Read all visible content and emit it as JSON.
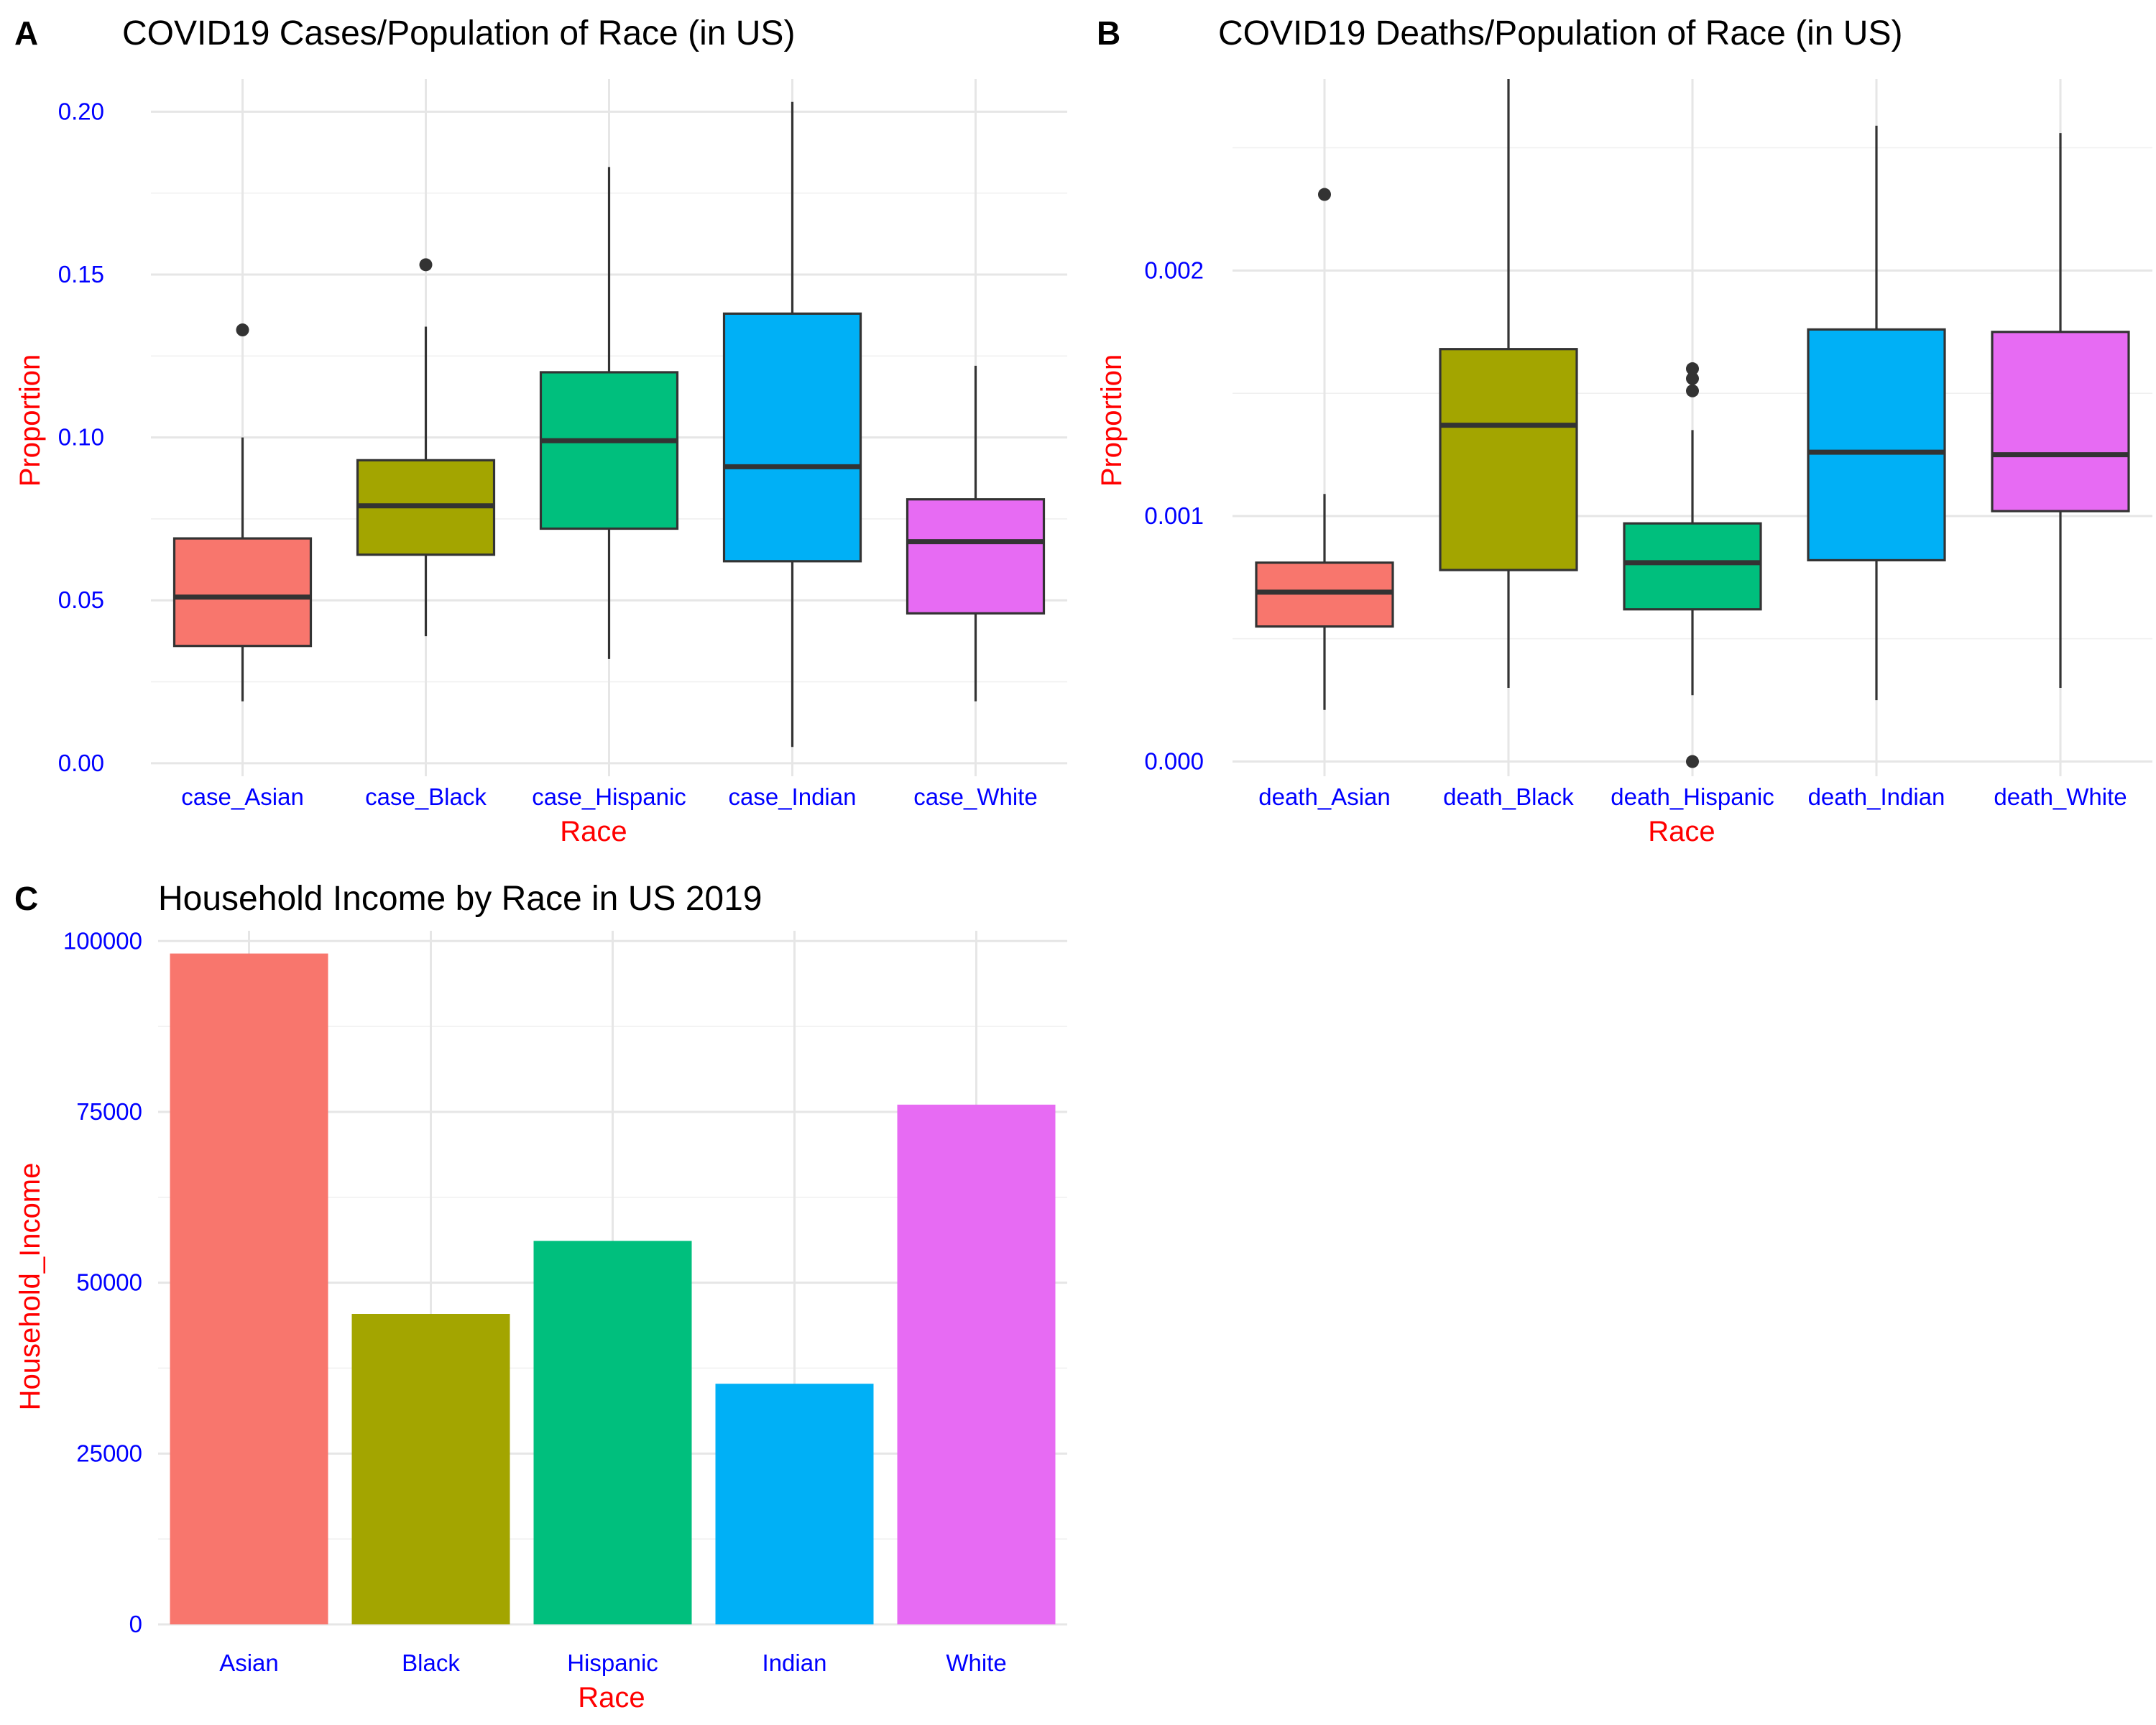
{
  "chart_data": [
    {
      "panel": "A",
      "type": "box",
      "title": "COVID19 Cases/Population of Race (in US)",
      "xlabel": "Race",
      "ylabel": "Proportion",
      "ylim": [
        -0.004,
        0.21
      ],
      "yticks": [
        0.0,
        0.05,
        0.1,
        0.15,
        0.2
      ],
      "ytick_labels": [
        "0.00",
        "0.05",
        "0.10",
        "0.15",
        "0.20"
      ],
      "categories": [
        "case_Asian",
        "case_Black",
        "case_Hispanic",
        "case_Indian",
        "case_White"
      ],
      "colors": [
        "#F8766D",
        "#A3A500",
        "#00BF7D",
        "#00B0F6",
        "#E76BF3"
      ],
      "boxes": [
        {
          "whisker_low": 0.019,
          "q1": 0.036,
          "median": 0.051,
          "q3": 0.069,
          "whisker_high": 0.1,
          "outliers": [
            0.133
          ]
        },
        {
          "whisker_low": 0.039,
          "q1": 0.064,
          "median": 0.079,
          "q3": 0.093,
          "whisker_high": 0.134,
          "outliers": [
            0.153
          ]
        },
        {
          "whisker_low": 0.032,
          "q1": 0.072,
          "median": 0.099,
          "q3": 0.12,
          "whisker_high": 0.183,
          "outliers": []
        },
        {
          "whisker_low": 0.005,
          "q1": 0.062,
          "median": 0.091,
          "q3": 0.138,
          "whisker_high": 0.203,
          "outliers": []
        },
        {
          "whisker_low": 0.019,
          "q1": 0.046,
          "median": 0.068,
          "q3": 0.081,
          "whisker_high": 0.122,
          "outliers": []
        }
      ]
    },
    {
      "panel": "B",
      "type": "box",
      "title": "COVID19 Deaths/Population of Race (in US)",
      "xlabel": "Race",
      "ylabel": "Proportion",
      "ylim": [
        -6e-05,
        0.00278
      ],
      "yticks": [
        0.0,
        0.001,
        0.002
      ],
      "ytick_labels": [
        "0.000",
        "0.001",
        "0.002"
      ],
      "categories": [
        "death_Asian",
        "death_Black",
        "death_Hispanic",
        "death_Indian",
        "death_White"
      ],
      "colors": [
        "#F8766D",
        "#A3A500",
        "#00BF7D",
        "#00B0F6",
        "#E76BF3"
      ],
      "boxes": [
        {
          "whisker_low": 0.00021,
          "q1": 0.00055,
          "median": 0.00069,
          "q3": 0.00081,
          "whisker_high": 0.00109,
          "outliers": [
            0.00231
          ]
        },
        {
          "whisker_low": 0.0003,
          "q1": 0.00078,
          "median": 0.00137,
          "q3": 0.00168,
          "whisker_high": 0.00278,
          "outliers": []
        },
        {
          "whisker_low": 0.00027,
          "q1": 0.00062,
          "median": 0.00081,
          "q3": 0.00097,
          "whisker_high": 0.00135,
          "outliers": [
            0.0,
            0.00151,
            0.00156,
            0.0016
          ]
        },
        {
          "whisker_low": 0.00025,
          "q1": 0.00082,
          "median": 0.00126,
          "q3": 0.00176,
          "whisker_high": 0.00259,
          "outliers": []
        },
        {
          "whisker_low": 0.0003,
          "q1": 0.00102,
          "median": 0.00125,
          "q3": 0.00175,
          "whisker_high": 0.00256,
          "outliers": []
        }
      ]
    },
    {
      "panel": "C",
      "type": "bar",
      "title": "Household Income by Race in US 2019",
      "xlabel": "Race",
      "ylabel": "Household_Income",
      "ylim": [
        0,
        101500
      ],
      "yticks": [
        0,
        25000,
        50000,
        75000,
        100000
      ],
      "ytick_labels": [
        "0",
        "25000",
        "50000",
        "75000",
        "100000"
      ],
      "categories": [
        "Asian",
        "Black",
        "Hispanic",
        "Indian",
        "White"
      ],
      "colors": [
        "#F8766D",
        "#A3A500",
        "#00BF7D",
        "#00B0F6",
        "#E76BF3"
      ],
      "values": [
        98174,
        45438,
        56113,
        35213,
        76057
      ]
    }
  ]
}
